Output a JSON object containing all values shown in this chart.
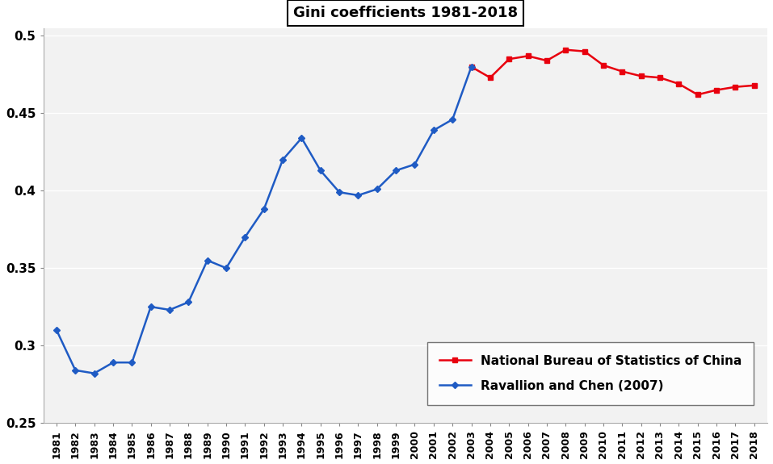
{
  "title": "Gini coefficients 1981-2018",
  "blue_series": {
    "label": "Ravallion and Chen (2007)",
    "years": [
      1981,
      1982,
      1983,
      1984,
      1985,
      1986,
      1987,
      1988,
      1989,
      1990,
      1991,
      1992,
      1993,
      1994,
      1995,
      1996,
      1997,
      1998,
      1999,
      2000,
      2001,
      2002,
      2003
    ],
    "values": [
      0.31,
      0.284,
      0.282,
      0.289,
      0.289,
      0.325,
      0.323,
      0.328,
      0.355,
      0.35,
      0.37,
      0.388,
      0.42,
      0.434,
      0.413,
      0.399,
      0.397,
      0.401,
      0.413,
      0.417,
      0.439,
      0.446,
      0.48
    ],
    "color": "#1F5BC4"
  },
  "red_series": {
    "label": "National Bureau of Statistics of China",
    "years": [
      2003,
      2004,
      2005,
      2006,
      2007,
      2008,
      2009,
      2010,
      2011,
      2012,
      2013,
      2014,
      2015,
      2016,
      2017,
      2018
    ],
    "values": [
      0.48,
      0.473,
      0.485,
      0.487,
      0.484,
      0.491,
      0.49,
      0.481,
      0.477,
      0.474,
      0.473,
      0.469,
      0.462,
      0.465,
      0.467,
      0.468
    ],
    "color": "#E8000E"
  },
  "ylim": [
    0.25,
    0.505
  ],
  "ytick_values": [
    0.25,
    0.3,
    0.35,
    0.4,
    0.45,
    0.5
  ],
  "ytick_labels": [
    "0.25",
    "0.3",
    "0.35",
    "0.4",
    "0.45",
    "0.5"
  ],
  "background_color": "#FFFFFF",
  "plot_bg_color": "#F2F2F2",
  "grid_color": "#FFFFFF"
}
